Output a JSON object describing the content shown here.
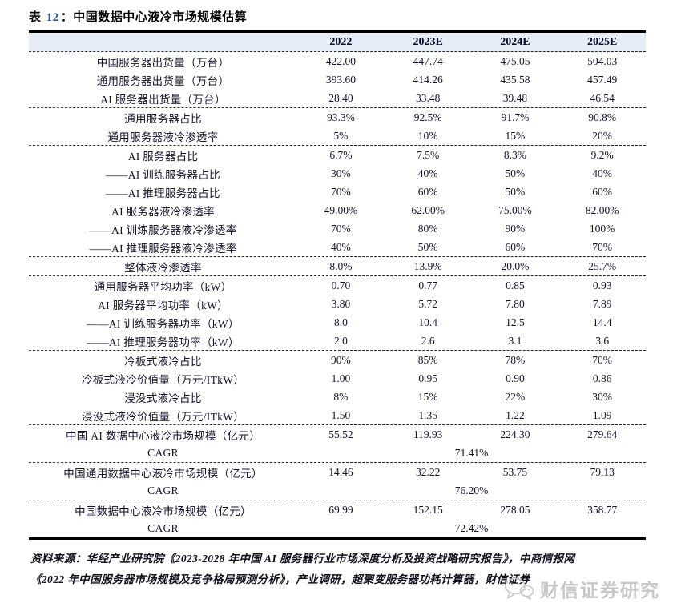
{
  "title": {
    "prefix": "表",
    "number": "12",
    "suffix": "：中国数据中心液冷市场规模估算"
  },
  "table": {
    "columns": [
      "2022",
      "2023E",
      "2024E",
      "2025E"
    ],
    "groups": [
      {
        "rows": [
          {
            "label": "中国服务器出货量（万台）",
            "values": [
              "422.00",
              "447.74",
              "475.05",
              "504.03"
            ]
          },
          {
            "label": "通用服务器出货量（万台）",
            "values": [
              "393.60",
              "414.26",
              "435.58",
              "457.49"
            ]
          },
          {
            "label": "AI 服务器出货量（万台）",
            "values": [
              "28.40",
              "33.48",
              "39.48",
              "46.54"
            ]
          }
        ]
      },
      {
        "rows": [
          {
            "label": "通用服务器占比",
            "values": [
              "93.3%",
              "92.5%",
              "91.7%",
              "90.8%"
            ]
          },
          {
            "label": "通用服务器液冷渗透率",
            "values": [
              "5%",
              "10%",
              "15%",
              "20%"
            ]
          }
        ]
      },
      {
        "rows": [
          {
            "label": "AI 服务器占比",
            "values": [
              "6.7%",
              "7.5%",
              "8.3%",
              "9.2%"
            ]
          },
          {
            "label": "——AI 训练服务器占比",
            "values": [
              "30%",
              "40%",
              "50%",
              "40%"
            ]
          },
          {
            "label": "——AI 推理服务器占比",
            "values": [
              "70%",
              "60%",
              "50%",
              "60%"
            ]
          },
          {
            "label": "AI 服务器液冷渗透率",
            "values": [
              "49.00%",
              "62.00%",
              "75.00%",
              "82.00%"
            ]
          },
          {
            "label": "——AI 训练服务器液冷渗透率",
            "values": [
              "70%",
              "80%",
              "90%",
              "100%"
            ]
          },
          {
            "label": "——AI 推理服务器液冷渗透率",
            "values": [
              "40%",
              "50%",
              "60%",
              "70%"
            ]
          }
        ]
      },
      {
        "rows": [
          {
            "label": "整体液冷渗透率",
            "values": [
              "8.0%",
              "13.9%",
              "20.0%",
              "25.7%"
            ]
          }
        ]
      },
      {
        "rows": [
          {
            "label": "通用服务器平均功率（kW）",
            "values": [
              "0.70",
              "0.77",
              "0.85",
              "0.93"
            ]
          },
          {
            "label": "AI 服务器平均功率（kW）",
            "values": [
              "3.80",
              "5.72",
              "7.80",
              "7.89"
            ]
          },
          {
            "label": "——AI 训练服务器功率（kW）",
            "values": [
              "8.0",
              "10.4",
              "12.5",
              "14.4"
            ]
          },
          {
            "label": "——AI 推理服务器功率（kW）",
            "values": [
              "2.0",
              "2.6",
              "3.1",
              "3.6"
            ]
          }
        ]
      },
      {
        "rows": [
          {
            "label": "冷板式液冷占比",
            "values": [
              "90%",
              "85%",
              "78%",
              "70%"
            ]
          },
          {
            "label": "冷板式液冷价值量（万元/ITkW）",
            "values": [
              "1.00",
              "0.95",
              "0.90",
              "0.86"
            ]
          },
          {
            "label": "浸没式液冷占比",
            "values": [
              "8%",
              "15%",
              "22%",
              "30%"
            ]
          },
          {
            "label": "浸没式液冷价值量（万元/ITkW）",
            "values": [
              "1.50",
              "1.35",
              "1.22",
              "1.09"
            ]
          }
        ]
      },
      {
        "rows": [
          {
            "label": "中国 AI 数据中心液冷市场规模（亿元）",
            "values": [
              "55.52",
              "119.93",
              "224.30",
              "279.64"
            ]
          },
          {
            "label": "CAGR",
            "span_value": "71.41%"
          }
        ]
      },
      {
        "rows": [
          {
            "label": "中国通用数据中心液冷市场规模（亿元）",
            "values": [
              "14.46",
              "32.22",
              "53.75",
              "79.13"
            ]
          },
          {
            "label": "CAGR",
            "span_value": "76.20%"
          }
        ]
      },
      {
        "rows": [
          {
            "label": "中国数据中心液冷市场规模（亿元）",
            "values": [
              "69.99",
              "152.15",
              "278.05",
              "358.77"
            ]
          },
          {
            "label": "CAGR",
            "span_value": "72.42%"
          }
        ]
      }
    ]
  },
  "footer": {
    "source_line1": "资料来源：华经产业研究院《2023-2028 年中国 AI 服务器行业市场深度分析及投资战略研究报告》，中商情报网",
    "source_line2": "《2022 年中国服务器市场规模及竞争格局预测分析》，产业调研，超聚变服务器功耗计算器，财信证券",
    "watermark": "财信证券研究"
  },
  "colors": {
    "header_bg": "#e6edf7",
    "title_number": "#2455a4",
    "text": "#141428",
    "watermark": "#c7c7c7",
    "border": "#000000"
  }
}
